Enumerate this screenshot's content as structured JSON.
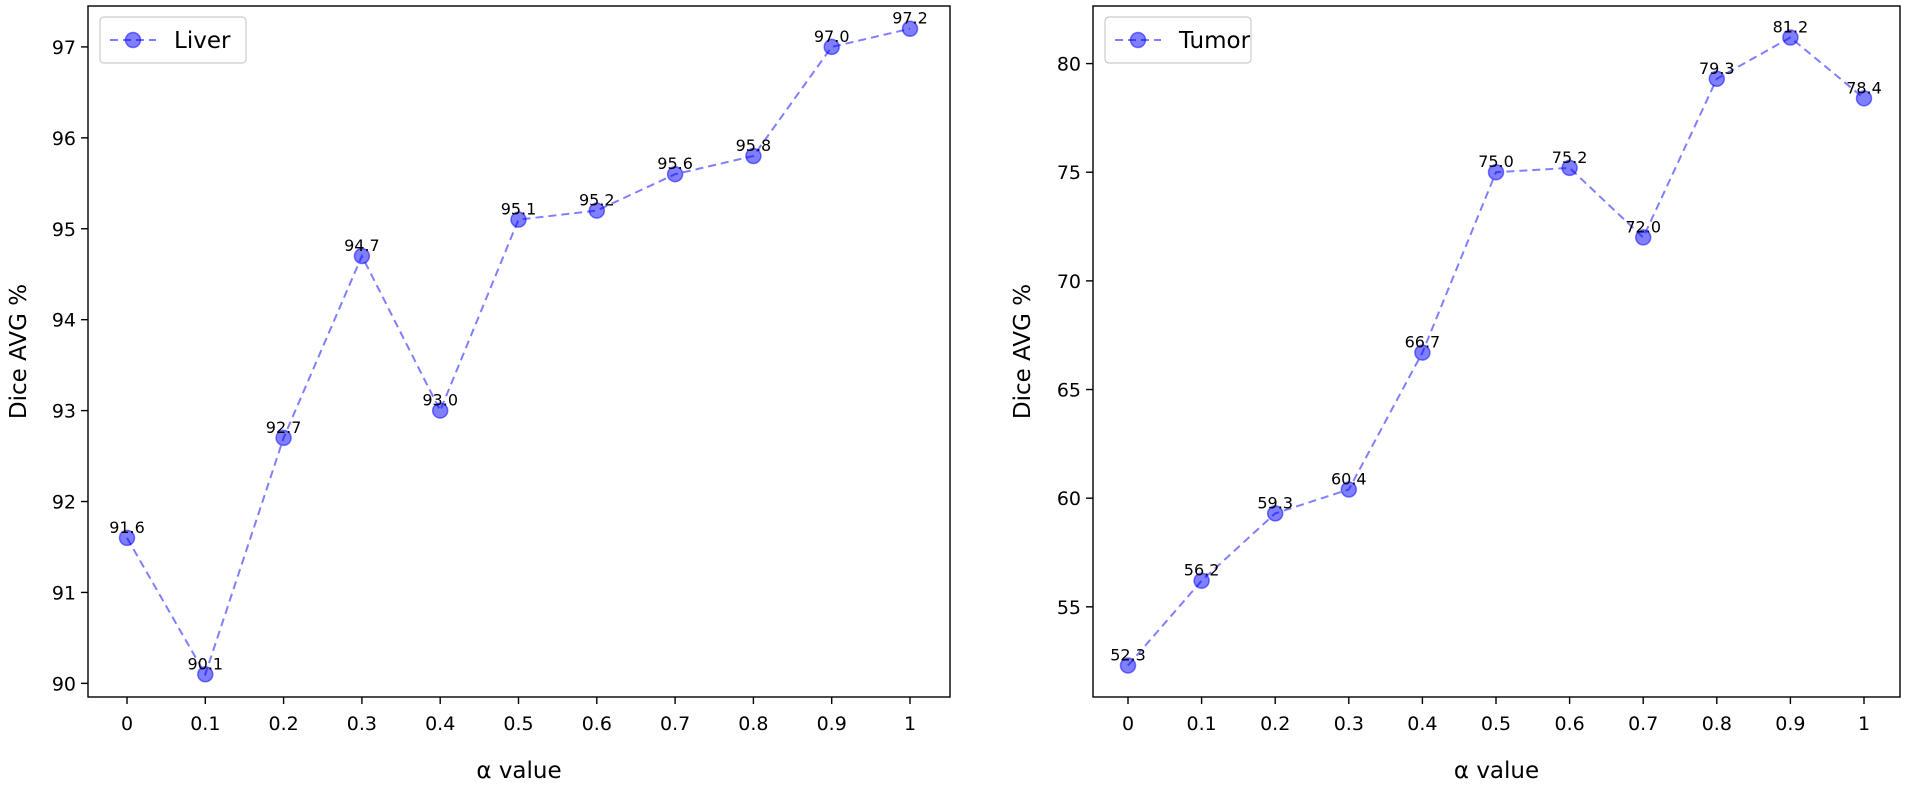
{
  "chart_data": [
    {
      "type": "line",
      "title": "",
      "xlabel": "α value",
      "ylabel": "Dice AVG %",
      "categories": [
        "0",
        "0.1",
        "0.2",
        "0.3",
        "0.4",
        "0.5",
        "0.6",
        "0.7",
        "0.8",
        "0.9",
        "1"
      ],
      "series": [
        {
          "name": "Liver",
          "values": [
            91.6,
            90.1,
            92.7,
            94.7,
            93.0,
            95.1,
            95.2,
            95.6,
            95.8,
            97.0,
            97.2
          ],
          "labels": [
            "91.6",
            "90.1",
            "92.7",
            "94.7",
            "93.0",
            "95.1",
            "95.2",
            "95.6",
            "95.8",
            "97.0",
            "97.2"
          ]
        }
      ],
      "ylim": [
        89.85,
        97.45
      ],
      "yticks": [
        "90",
        "91",
        "92",
        "93",
        "94",
        "95",
        "96",
        "97"
      ],
      "grid": false,
      "legend": "top-left",
      "color": "#0000ff"
    },
    {
      "type": "line",
      "title": "",
      "xlabel": "α value",
      "ylabel": "Dice AVG %",
      "categories": [
        "0",
        "0.1",
        "0.2",
        "0.3",
        "0.4",
        "0.5",
        "0.6",
        "0.7",
        "0.8",
        "0.9",
        "1"
      ],
      "series": [
        {
          "name": "Tumor",
          "values": [
            52.3,
            56.2,
            59.3,
            60.4,
            66.7,
            75.0,
            75.2,
            72.0,
            79.3,
            81.2,
            78.4
          ],
          "labels": [
            "52.3",
            "56.2",
            "59.3",
            "60.4",
            "66.7",
            "75.0",
            "75.2",
            "72.0",
            "79.3",
            "81.2",
            "78.4"
          ]
        }
      ],
      "ylim": [
        50.85,
        82.65
      ],
      "yticks": [
        "55",
        "60",
        "65",
        "70",
        "75",
        "80"
      ],
      "grid": false,
      "legend": "top-left",
      "color": "#0000ff"
    }
  ]
}
